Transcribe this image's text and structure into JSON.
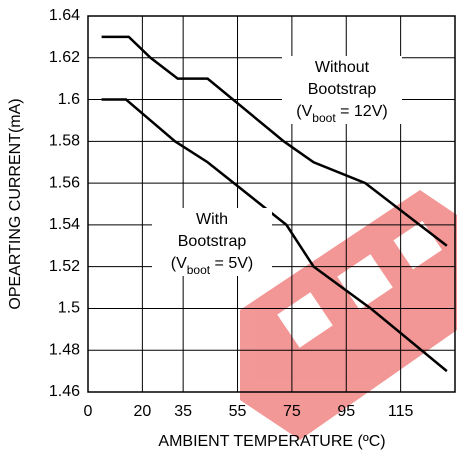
{
  "chart_data": {
    "type": "line",
    "xlabel": "AMBIENT TEMPERATURE (ºC)",
    "ylabel": "OPEARTING CURRENT(mA)",
    "series": [
      {
        "name": "Without Bootstrap",
        "color": "#000000",
        "x": [
          5,
          15,
          23,
          33,
          44,
          72,
          83,
          102,
          132
        ],
        "values": [
          1.63,
          1.63,
          1.62,
          1.61,
          1.61,
          1.58,
          1.57,
          1.56,
          1.53
        ]
      },
      {
        "name": "With Bootstrap",
        "color": "#000000",
        "x": [
          5,
          14,
          32,
          44,
          73,
          83,
          104,
          132
        ],
        "values": [
          1.6,
          1.6,
          1.58,
          1.57,
          1.54,
          1.52,
          1.5,
          1.47
        ]
      }
    ],
    "annotations": [
      {
        "lines": [
          "Without",
          "Bootstrap"
        ],
        "sub": [
          "(V",
          "boot",
          " = 12V)"
        ]
      },
      {
        "lines": [
          "With",
          "Bootstrap"
        ],
        "sub": [
          "(V",
          "boot",
          " = 5V)"
        ]
      }
    ],
    "xlim": [
      0,
      135
    ],
    "xticks": [
      0,
      20,
      35,
      55,
      75,
      95,
      115
    ],
    "ylim": [
      1.46,
      1.64
    ],
    "yticks": [
      1.46,
      1.48,
      1.5,
      1.52,
      1.54,
      1.56,
      1.58,
      1.6,
      1.62,
      1.64
    ],
    "grid": true
  }
}
